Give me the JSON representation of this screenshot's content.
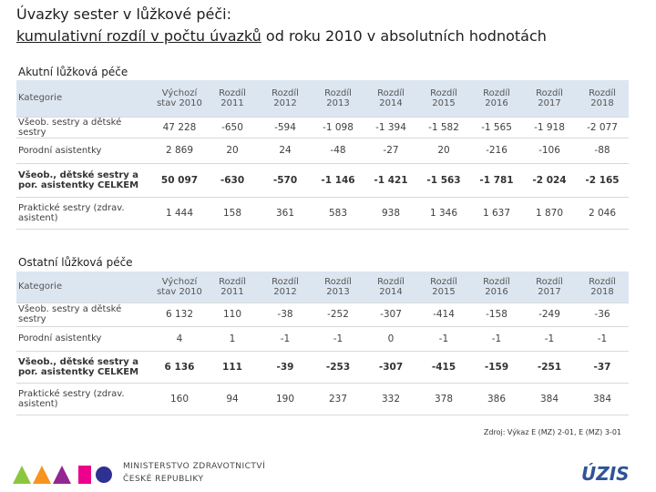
{
  "header": {
    "title_line1": "Úvazky sester v lůžkové péči:",
    "title_line2_underlined": "kumulativní rozdíl v počtu úvazků",
    "title_line2_rest": " od roku 2010 v absolutních hodnotách"
  },
  "tables": [
    {
      "title": "Akutní lůžková péče",
      "columns": [
        "Kategorie",
        "Výchozí stav 2010",
        "Rozdíl 2011",
        "Rozdíl 2012",
        "Rozdíl 2013",
        "Rozdíl 2014",
        "Rozdíl 2015",
        "Rozdíl 2016",
        "Rozdíl 2017",
        "Rozdíl 2018"
      ],
      "rows": [
        [
          "Všeob. sestry a dětské sestry",
          "47 228",
          "-650",
          "-594",
          "-1 098",
          "-1 394",
          "-1 582",
          "-1 565",
          "-1 918",
          "-2 077"
        ],
        [
          "Porodní asistentky",
          "2 869",
          "20",
          "24",
          "-48",
          "-27",
          "20",
          "-216",
          "-106",
          "-88"
        ],
        [
          "Všeob., dětské sestry a por. asistentky CELKEM",
          "50 097",
          "-630",
          "-570",
          "-1 146",
          "-1 421",
          "-1 563",
          "-1 781",
          "-2 024",
          "-2 165"
        ],
        [
          "Praktické sestry (zdrav. asistent)",
          "1 444",
          "158",
          "361",
          "583",
          "938",
          "1 346",
          "1 637",
          "1 870",
          "2 046"
        ]
      ]
    },
    {
      "title": "Ostatní lůžková péče",
      "columns": [
        "Kategorie",
        "Výchozí stav 2010",
        "Rozdíl 2011",
        "Rozdíl 2012",
        "Rozdíl 2013",
        "Rozdíl 2014",
        "Rozdíl 2015",
        "Rozdíl 2016",
        "Rozdíl 2017",
        "Rozdíl 2018"
      ],
      "rows": [
        [
          "Všeob. sestry a dětské sestry",
          "6 132",
          "110",
          "-38",
          "-252",
          "-307",
          "-414",
          "-158",
          "-249",
          "-36"
        ],
        [
          "Porodní asistentky",
          "4",
          "1",
          "-1",
          "-1",
          "0",
          "-1",
          "-1",
          "-1",
          "-1"
        ],
        [
          "Všeob., dětské sestry a por. asistentky CELKEM",
          "6 136",
          "111",
          "-39",
          "-253",
          "-307",
          "-415",
          "-159",
          "-251",
          "-37"
        ],
        [
          "Praktické sestry (zdrav. asistent)",
          "160",
          "94",
          "190",
          "237",
          "332",
          "378",
          "386",
          "384",
          "384"
        ]
      ]
    }
  ],
  "footer": {
    "source": "Zdroj: Výkaz E (MZ) 2-01, E (MZ) 3-01",
    "ministry_line1": "MINISTERSTVO ZDRAVOTNICTVÍ",
    "ministry_line2": "ČESKÉ REPUBLIKY",
    "uzis": "ÚZIS"
  }
}
